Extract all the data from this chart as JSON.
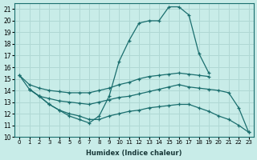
{
  "xlabel": "Humidex (Indice chaleur)",
  "xlim": [
    -0.5,
    23.5
  ],
  "ylim": [
    10,
    21.5
  ],
  "yticks": [
    10,
    11,
    12,
    13,
    14,
    15,
    16,
    17,
    18,
    19,
    20,
    21
  ],
  "xtick_labels": [
    "0",
    "1",
    "2",
    "3",
    "4",
    "5",
    "6",
    "7",
    "8",
    "9",
    "10",
    "11",
    "12",
    "13",
    "14",
    "15",
    "16",
    "17",
    "18",
    "19",
    "20",
    "21",
    "22",
    "23"
  ],
  "background_color": "#c8ece8",
  "grid_color": "#b0d8d4",
  "line_color": "#1a6e6e",
  "lines": [
    {
      "x": [
        0,
        1,
        2,
        3,
        4,
        5,
        6,
        7,
        8,
        9,
        10,
        11,
        12,
        13,
        14,
        15,
        16,
        17,
        18,
        19
      ],
      "y": [
        15.3,
        14.1,
        13.5,
        12.8,
        12.3,
        11.8,
        11.5,
        11.2,
        11.8,
        13.5,
        16.5,
        18.3,
        19.8,
        20.0,
        20.0,
        21.2,
        21.2,
        20.5,
        17.2,
        15.5
      ]
    },
    {
      "x": [
        0,
        1,
        2,
        3,
        4,
        5,
        6,
        7,
        8,
        9,
        10,
        11,
        12,
        13,
        14,
        15,
        16,
        17,
        18,
        19
      ],
      "y": [
        15.3,
        14.5,
        14.2,
        14.0,
        13.9,
        13.8,
        13.8,
        13.8,
        14.0,
        14.2,
        14.5,
        14.7,
        15.0,
        15.2,
        15.3,
        15.4,
        15.5,
        15.4,
        15.3,
        15.2
      ]
    },
    {
      "x": [
        1,
        2,
        3,
        4,
        5,
        6,
        7,
        8,
        9,
        10,
        11,
        12,
        13,
        14,
        15,
        16,
        17,
        18,
        19,
        20,
        21,
        22,
        23
      ],
      "y": [
        14.1,
        13.5,
        13.3,
        13.1,
        13.0,
        12.9,
        12.8,
        13.0,
        13.2,
        13.4,
        13.5,
        13.7,
        13.9,
        14.1,
        14.3,
        14.5,
        14.3,
        14.2,
        14.1,
        14.0,
        13.8,
        12.5,
        10.4
      ]
    },
    {
      "x": [
        1,
        2,
        3,
        4,
        5,
        6,
        7,
        8,
        9,
        10,
        11,
        12,
        13,
        14,
        15,
        16,
        17,
        18,
        19,
        20,
        21,
        22,
        23
      ],
      "y": [
        14.1,
        13.5,
        12.8,
        12.3,
        12.0,
        11.8,
        11.5,
        11.5,
        11.8,
        12.0,
        12.2,
        12.3,
        12.5,
        12.6,
        12.7,
        12.8,
        12.8,
        12.5,
        12.2,
        11.8,
        11.5,
        11.0,
        10.4
      ]
    }
  ]
}
